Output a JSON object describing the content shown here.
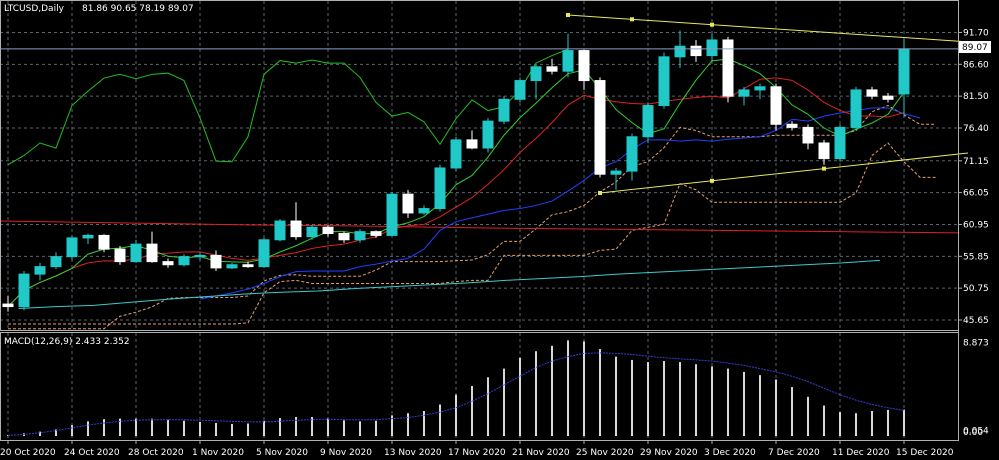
{
  "chart_data": {
    "type": "candlestick",
    "title": "LTCUSD,Daily",
    "ohlc_readout": "81.86 90.65 78.19 89.07",
    "last_price": "89.07",
    "colors": {
      "background": "#000000",
      "bull_candle": "#20c8c8",
      "bear_candle": "#ffffff",
      "grid": "#5a6470",
      "green_line": "#20c020",
      "red_line": "#e02020",
      "blue_line": "#2040ff",
      "teal_line": "#20b0b0",
      "trendline": "#e8e860",
      "cloud": "#e8a070",
      "macd_hist": "#d8d8d8",
      "macd_signal": "#3040d0"
    },
    "y_ticks": [
      "91.70",
      "86.60",
      "81.50",
      "76.40",
      "71.15",
      "66.05",
      "60.95",
      "55.85",
      "50.75",
      "45.65"
    ],
    "ylim": [
      45.65,
      94.5
    ],
    "x_labels": [
      {
        "i": 0,
        "label": "20 Oct 2020"
      },
      {
        "i": 4,
        "label": "24 Oct 2020"
      },
      {
        "i": 8,
        "label": "28 Oct 2020"
      },
      {
        "i": 12,
        "label": "1 Nov 2020"
      },
      {
        "i": 16,
        "label": "5 Nov 2020"
      },
      {
        "i": 20,
        "label": "9 Nov 2020"
      },
      {
        "i": 24,
        "label": "13 Nov 2020"
      },
      {
        "i": 28,
        "label": "17 Nov 2020"
      },
      {
        "i": 32,
        "label": "21 Nov 2020"
      },
      {
        "i": 36,
        "label": "25 Nov 2020"
      },
      {
        "i": 40,
        "label": "29 Nov 2020"
      },
      {
        "i": 44,
        "label": "3 Dec 2020"
      },
      {
        "i": 48,
        "label": "7 Dec 2020"
      },
      {
        "i": 52,
        "label": "11 Dec 2020"
      },
      {
        "i": 56,
        "label": "15 Dec 2020"
      }
    ],
    "candles": [
      [
        48.2,
        49.5,
        47.0,
        47.8
      ],
      [
        47.8,
        53.5,
        47.2,
        53.0
      ],
      [
        53.0,
        54.8,
        52.0,
        54.2
      ],
      [
        54.2,
        56.5,
        53.8,
        55.8
      ],
      [
        55.8,
        59.2,
        55.2,
        58.8
      ],
      [
        58.8,
        59.5,
        57.8,
        59.2
      ],
      [
        59.2,
        59.4,
        56.5,
        57.0
      ],
      [
        57.0,
        57.5,
        54.5,
        55.0
      ],
      [
        55.0,
        58.5,
        54.8,
        57.8
      ],
      [
        57.8,
        59.8,
        54.8,
        55.0
      ],
      [
        55.0,
        55.5,
        54.0,
        54.5
      ],
      [
        54.5,
        56.2,
        54.2,
        55.8
      ],
      [
        55.8,
        56.5,
        55.2,
        56.0
      ],
      [
        56.0,
        56.8,
        53.5,
        54.0
      ],
      [
        54.0,
        54.8,
        53.8,
        54.5
      ],
      [
        54.5,
        55.0,
        54.0,
        54.2
      ],
      [
        54.2,
        58.8,
        54.0,
        58.5
      ],
      [
        58.5,
        61.8,
        58.2,
        61.5
      ],
      [
        61.5,
        64.5,
        58.5,
        59.0
      ],
      [
        59.0,
        60.8,
        58.5,
        60.5
      ],
      [
        60.5,
        60.8,
        59.0,
        59.5
      ],
      [
        59.5,
        59.8,
        58.0,
        58.5
      ],
      [
        58.5,
        60.2,
        58.0,
        59.8
      ],
      [
        59.8,
        60.0,
        58.8,
        59.2
      ],
      [
        59.2,
        66.2,
        59.0,
        65.8
      ],
      [
        65.8,
        66.5,
        62.0,
        62.8
      ],
      [
        62.8,
        64.0,
        62.5,
        63.5
      ],
      [
        63.5,
        70.5,
        63.0,
        70.0
      ],
      [
        70.0,
        75.0,
        69.5,
        74.5
      ],
      [
        74.5,
        76.0,
        73.0,
        73.2
      ],
      [
        73.2,
        78.0,
        72.5,
        77.5
      ],
      [
        77.5,
        81.5,
        77.0,
        81.0
      ],
      [
        81.0,
        84.5,
        80.5,
        84.0
      ],
      [
        84.0,
        86.5,
        81.0,
        86.2
      ],
      [
        86.2,
        87.5,
        85.0,
        85.5
      ],
      [
        85.5,
        91.5,
        84.5,
        88.8
      ],
      [
        88.8,
        89.0,
        82.5,
        84.0
      ],
      [
        84.0,
        84.5,
        68.5,
        69.0
      ],
      [
        69.0,
        70.0,
        66.5,
        69.5
      ],
      [
        69.5,
        75.5,
        68.0,
        75.0
      ],
      [
        75.0,
        80.5,
        74.0,
        80.0
      ],
      [
        80.0,
        88.5,
        79.5,
        87.8
      ],
      [
        87.8,
        92.0,
        86.0,
        89.5
      ],
      [
        89.5,
        90.5,
        87.0,
        88.0
      ],
      [
        88.0,
        91.5,
        87.0,
        90.5
      ],
      [
        90.5,
        91.0,
        80.5,
        81.5
      ],
      [
        81.5,
        83.0,
        80.0,
        82.5
      ],
      [
        82.5,
        83.5,
        81.0,
        83.0
      ],
      [
        83.0,
        83.5,
        76.0,
        77.0
      ],
      [
        77.0,
        77.5,
        76.0,
        76.5
      ],
      [
        76.5,
        77.0,
        73.0,
        74.0
      ],
      [
        74.0,
        74.5,
        70.5,
        71.5
      ],
      [
        71.5,
        77.0,
        71.0,
        76.5
      ],
      [
        76.5,
        83.0,
        76.0,
        82.5
      ],
      [
        82.5,
        83.0,
        81.0,
        81.5
      ],
      [
        81.5,
        82.0,
        80.5,
        81.0
      ],
      [
        81.86,
        90.65,
        78.19,
        89.07
      ]
    ],
    "lines": {
      "green": [
        70.5,
        72,
        74,
        73.2,
        80,
        82.3,
        84.4,
        85,
        84.3,
        85,
        85.2,
        84,
        78,
        71.1,
        71,
        75,
        85,
        87.2,
        86.8,
        87.3,
        86.8,
        86.8,
        84.5,
        80.5,
        78.3,
        78.9,
        77.4,
        73.8,
        77.9,
        80.9,
        79.2,
        79.8,
        82.5,
        86.8,
        88,
        89
      ],
      "red": [
        61.5,
        61.2,
        60.9,
        60.7,
        60.4,
        60.2,
        60,
        59.8,
        59.6
      ],
      "blue_fast": [
        49,
        49.5,
        50,
        50.6,
        51.5,
        52.6,
        53.4,
        53.5,
        53.5,
        53.5,
        54.2,
        54.6,
        55.1,
        55.5,
        57,
        60,
        61.4,
        62,
        62.6,
        63.2,
        63.5,
        64,
        64.7,
        66.3,
        68,
        70,
        71,
        73,
        74.5,
        74.5,
        74.3,
        74.5,
        74.3,
        74.6,
        74.8,
        75,
        76,
        77.8,
        77.5,
        78.3,
        78.8,
        79.2,
        79.6,
        79.6,
        78.7,
        78
      ],
      "teal": [
        47.5,
        47.8,
        48,
        48.5,
        49,
        49.4,
        49.8,
        50.1,
        50.3,
        50.7,
        51,
        51.3,
        51.6,
        52,
        52.3,
        52.6,
        53,
        53.3,
        53.6,
        53.9,
        54.2,
        54.5,
        54.8,
        55.2
      ]
    },
    "trendlines": [
      {
        "from": [
          35,
          94.5
        ],
        "to": [
          60,
          90.2
        ],
        "points": [
          35,
          39,
          44
        ]
      },
      {
        "from": [
          37,
          66.0
        ],
        "to": [
          60,
          72.4
        ],
        "points": [
          37,
          44,
          51
        ]
      }
    ],
    "macd": {
      "label": "MACD(12,26,9) 2.433 2.352",
      "y_ticks": [
        "8.873",
        "0.054",
        "0.00"
      ],
      "hist": [
        0.1,
        0.25,
        0.4,
        0.6,
        1.0,
        1.35,
        1.55,
        1.6,
        1.6,
        1.6,
        1.5,
        1.4,
        1.3,
        1.2,
        1.1,
        1.15,
        1.4,
        1.65,
        1.75,
        1.75,
        1.6,
        1.45,
        1.35,
        1.4,
        1.9,
        2.1,
        2.3,
        2.9,
        3.8,
        4.6,
        5.4,
        6.2,
        7.2,
        7.8,
        8.3,
        8.8,
        8.7,
        8.0,
        7.3,
        7.0,
        6.8,
        6.9,
        6.8,
        6.6,
        6.4,
        6.2,
        5.9,
        5.6,
        5.2,
        4.5,
        3.6,
        2.8,
        2.2,
        2.1,
        2.3,
        2.4,
        2.43
      ],
      "signal": [
        0.05,
        0.15,
        0.3,
        0.5,
        0.75,
        1.0,
        1.2,
        1.35,
        1.45,
        1.5,
        1.5,
        1.5,
        1.45,
        1.4,
        1.35,
        1.3,
        1.3,
        1.35,
        1.45,
        1.5,
        1.55,
        1.5,
        1.5,
        1.5,
        1.6,
        1.7,
        1.9,
        2.2,
        2.6,
        3.2,
        3.9,
        4.7,
        5.5,
        6.3,
        6.9,
        7.3,
        7.6,
        7.65,
        7.6,
        7.5,
        7.35,
        7.2,
        7.1,
        7.0,
        6.9,
        6.7,
        6.5,
        6.2,
        5.9,
        5.5,
        5.0,
        4.4,
        3.8,
        3.3,
        2.9,
        2.6,
        2.35
      ],
      "ylim": [
        0,
        9.2
      ]
    }
  }
}
